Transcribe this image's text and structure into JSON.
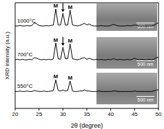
{
  "chart_data": {
    "type": "line",
    "x_label": "2θ (degree)",
    "y_label": "XRD Intensity (a.u.)",
    "xlim": [
      20,
      50
    ],
    "xticks": [
      20,
      25,
      30,
      35,
      40,
      45,
      50
    ],
    "ylim": [
      0,
      100
    ],
    "tick_labels": "x",
    "grid": false,
    "x": [
      20,
      20.5,
      21,
      21.5,
      22,
      22.5,
      23,
      23.5,
      24,
      24.5,
      25,
      25.5,
      26,
      26.5,
      27,
      27.5,
      28,
      28.5,
      29,
      29.5,
      30,
      30.5,
      31,
      31.5,
      32,
      32.5,
      33,
      33.5,
      34,
      34.5,
      35,
      35.5,
      36,
      36.5,
      37,
      37.5,
      38,
      38.5,
      39,
      39.5,
      40,
      40.5,
      41,
      41.5,
      42,
      42.5,
      43,
      43.5,
      44,
      44.5,
      45,
      45.5,
      46,
      46.5,
      47,
      47.5,
      48,
      48.5,
      49,
      49.5,
      50
    ],
    "series": [
      {
        "name": "1000°C",
        "color": "#000000",
        "values": [
          78,
          78,
          78.5,
          78,
          78,
          78.5,
          78,
          78.5,
          81,
          80,
          78.5,
          78,
          78,
          78.5,
          78,
          78.5,
          79,
          94,
          79,
          79,
          90,
          79,
          79,
          93,
          79,
          78.5,
          78,
          78.5,
          79.5,
          80.5,
          79,
          80,
          78.5,
          78,
          78,
          78,
          78.5,
          78,
          78,
          78,
          78.5,
          79.5,
          79,
          78,
          78,
          78,
          78,
          78.5,
          78,
          78.5,
          79,
          78.5,
          78,
          78,
          78,
          78,
          78,
          78,
          78.5,
          80,
          81
        ]
      },
      {
        "name": "700°C",
        "color": "#000000",
        "values": [
          46,
          46.5,
          46,
          46.5,
          46,
          46,
          46.5,
          46,
          48,
          47.5,
          46.5,
          46,
          46.5,
          46,
          46.5,
          46,
          47,
          62,
          47,
          46.5,
          58,
          47,
          47,
          61,
          47,
          46.5,
          46,
          46.5,
          47.5,
          48,
          46.5,
          47.5,
          46.5,
          46,
          46.5,
          46,
          46.5,
          46,
          46,
          46.5,
          46,
          47,
          46.5,
          46,
          46.5,
          46,
          46,
          46.5,
          46,
          46.5,
          47.5,
          46.5,
          46,
          46.5,
          46,
          46,
          46.5,
          46,
          46.5,
          48,
          48.5
        ]
      },
      {
        "name": "550°C",
        "color": "#000000",
        "values": [
          16,
          16,
          16.5,
          16,
          16,
          16.5,
          16,
          16,
          17,
          16.5,
          16,
          16,
          16.5,
          16,
          16,
          16.5,
          17,
          27,
          17,
          16.5,
          17.5,
          16.5,
          17,
          26,
          16.5,
          16,
          16,
          16.5,
          16.5,
          17.5,
          16.5,
          16.5,
          16,
          16,
          16,
          16.5,
          16,
          16,
          16,
          16,
          16,
          16.5,
          16.5,
          16,
          16,
          16,
          16,
          16,
          16,
          16,
          16.5,
          16,
          16,
          16,
          16,
          16,
          16,
          16,
          16.5,
          17.5,
          17.5
        ]
      }
    ],
    "annotations": [
      {
        "text": "M",
        "x": 28.5,
        "y": 94
      },
      {
        "text": "M",
        "x": 31.5,
        "y": 93
      },
      {
        "text": "M",
        "x": 28.5,
        "y": 62
      },
      {
        "text": "M",
        "x": 31.5,
        "y": 61
      },
      {
        "text": "M",
        "x": 28.5,
        "y": 27
      },
      {
        "text": "M",
        "x": 31.5,
        "y": 26
      }
    ],
    "arrows": [
      {
        "x": 30,
        "y": 90
      },
      {
        "x": 30,
        "y": 58
      }
    ],
    "insets": [
      {
        "series": "1000°C",
        "scale_bar": "500 nm"
      },
      {
        "series": "700°C",
        "scale_bar": "500 nm"
      },
      {
        "series": "550°C",
        "scale_bar": "500 nm"
      }
    ]
  }
}
